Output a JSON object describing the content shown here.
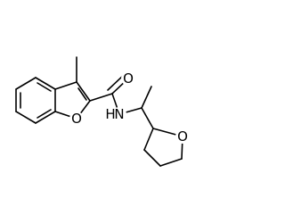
{
  "atoms": {
    "carbonyl_oxygen": "O",
    "furan_oxygen": "O",
    "amide_nitrogen": "N",
    "amide_hydrogen": "H",
    "oxolane_oxygen": "O"
  }
}
